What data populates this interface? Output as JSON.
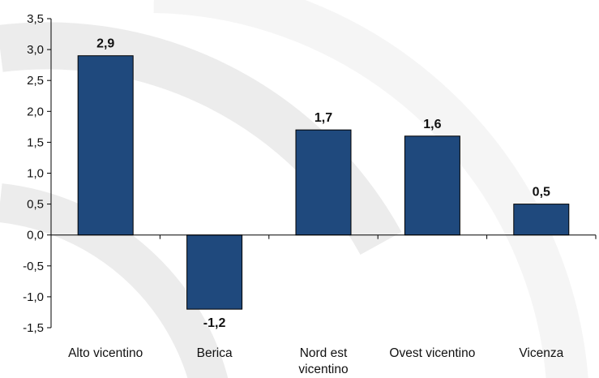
{
  "chart_data": {
    "type": "bar",
    "categories": [
      "Alto vicentino",
      "Berica",
      "Nord est vicentino",
      "Ovest vicentino",
      "Vicenza"
    ],
    "category_lines": [
      [
        "Alto vicentino"
      ],
      [
        "Berica"
      ],
      [
        "Nord est",
        "vicentino"
      ],
      [
        "Ovest vicentino"
      ],
      [
        "Vicenza"
      ]
    ],
    "values": [
      2.9,
      -1.2,
      1.7,
      1.6,
      0.5
    ],
    "value_labels": [
      "2,9",
      "-1,2",
      "1,7",
      "1,6",
      "0,5"
    ],
    "yticks": [
      3.5,
      3.0,
      2.5,
      2.0,
      1.5,
      1.0,
      0.5,
      0.0,
      -0.5,
      -1.0,
      -1.5
    ],
    "ytick_labels": [
      "3,5",
      "3,0",
      "2,5",
      "2,0",
      "1,5",
      "1,0",
      "0,5",
      "0,0",
      "-0,5",
      "-1,0",
      "-1,5"
    ],
    "ylim": [
      -1.5,
      3.5
    ],
    "title": "",
    "xlabel": "",
    "ylabel": "",
    "grid": false,
    "legend": "none",
    "colors": {
      "bar": "#1f497d",
      "bar_edge": "#000000",
      "axis": "#000000",
      "watermark": "#ececec"
    }
  }
}
